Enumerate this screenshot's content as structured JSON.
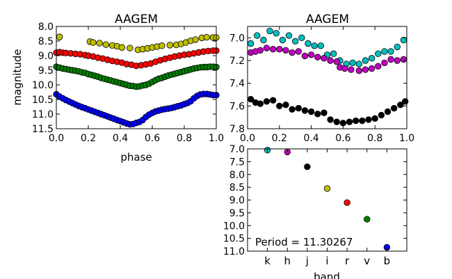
{
  "chart_data": [
    {
      "id": "panel-phase-all",
      "type": "scatter",
      "title": "AAGEM",
      "xlabel": "phase",
      "ylabel": "magnitude",
      "xlim": [
        0.0,
        1.0
      ],
      "ylim": [
        11.5,
        8.0
      ],
      "y_inverted": true,
      "xticks": [
        0.0,
        0.2,
        0.4,
        0.6,
        0.8,
        1.0
      ],
      "xtick_labels": [
        "0.0",
        "0.2",
        "0.4",
        "0.6",
        "0.8",
        "1.0"
      ],
      "yticks": [
        8.0,
        8.5,
        9.0,
        9.5,
        10.0,
        10.5,
        11.0,
        11.5
      ],
      "ytick_labels": [
        "8.0",
        "8.5",
        "9.0",
        "9.5",
        "10.0",
        "10.5",
        "11.0",
        "11.5"
      ],
      "series": [
        {
          "band": "i",
          "color": "#bfbf00",
          "points": [
            [
              0.02,
              8.36
            ],
            [
              0.21,
              8.52
            ],
            [
              0.23,
              8.55
            ],
            [
              0.27,
              8.57
            ],
            [
              0.31,
              8.62
            ],
            [
              0.35,
              8.65
            ],
            [
              0.38,
              8.68
            ],
            [
              0.41,
              8.72
            ],
            [
              0.46,
              8.74
            ],
            [
              0.51,
              8.8
            ],
            [
              0.54,
              8.78
            ],
            [
              0.57,
              8.75
            ],
            [
              0.6,
              8.72
            ],
            [
              0.63,
              8.69
            ],
            [
              0.66,
              8.66
            ],
            [
              0.71,
              8.64
            ],
            [
              0.75,
              8.63
            ],
            [
              0.78,
              8.6
            ],
            [
              0.81,
              8.55
            ],
            [
              0.84,
              8.49
            ],
            [
              0.87,
              8.45
            ],
            [
              0.91,
              8.39
            ],
            [
              0.94,
              8.37
            ],
            [
              0.98,
              8.38
            ],
            [
              1.0,
              8.38
            ]
          ]
        },
        {
          "band": "r",
          "color": "#ff0000",
          "points": [
            [
              0.0,
              8.9
            ],
            [
              0.02,
              8.88
            ],
            [
              0.04,
              8.9
            ],
            [
              0.06,
              8.91
            ],
            [
              0.09,
              8.92
            ],
            [
              0.12,
              8.94
            ],
            [
              0.15,
              8.95
            ],
            [
              0.18,
              8.98
            ],
            [
              0.2,
              9.0
            ],
            [
              0.23,
              9.03
            ],
            [
              0.26,
              9.07
            ],
            [
              0.29,
              9.1
            ],
            [
              0.32,
              9.14
            ],
            [
              0.35,
              9.18
            ],
            [
              0.38,
              9.21
            ],
            [
              0.41,
              9.24
            ],
            [
              0.44,
              9.29
            ],
            [
              0.47,
              9.31
            ],
            [
              0.5,
              9.35
            ],
            [
              0.53,
              9.33
            ],
            [
              0.56,
              9.3
            ],
            [
              0.59,
              9.27
            ],
            [
              0.62,
              9.21
            ],
            [
              0.65,
              9.16
            ],
            [
              0.68,
              9.11
            ],
            [
              0.71,
              9.07
            ],
            [
              0.74,
              9.03
            ],
            [
              0.77,
              9.0
            ],
            [
              0.8,
              8.97
            ],
            [
              0.83,
              8.95
            ],
            [
              0.86,
              8.92
            ],
            [
              0.89,
              8.89
            ],
            [
              0.92,
              8.86
            ],
            [
              0.95,
              8.84
            ],
            [
              0.98,
              8.83
            ],
            [
              1.0,
              8.83
            ]
          ]
        },
        {
          "band": "v",
          "color": "#008000",
          "points": [
            [
              0.0,
              9.38
            ],
            [
              0.02,
              9.41
            ],
            [
              0.04,
              9.44
            ],
            [
              0.06,
              9.46
            ],
            [
              0.08,
              9.48
            ],
            [
              0.1,
              9.5
            ],
            [
              0.12,
              9.52
            ],
            [
              0.14,
              9.54
            ],
            [
              0.16,
              9.57
            ],
            [
              0.18,
              9.59
            ],
            [
              0.2,
              9.63
            ],
            [
              0.22,
              9.66
            ],
            [
              0.24,
              9.69
            ],
            [
              0.26,
              9.72
            ],
            [
              0.28,
              9.76
            ],
            [
              0.3,
              9.79
            ],
            [
              0.32,
              9.82
            ],
            [
              0.34,
              9.85
            ],
            [
              0.36,
              9.88
            ],
            [
              0.38,
              9.91
            ],
            [
              0.4,
              9.94
            ],
            [
              0.42,
              9.97
            ],
            [
              0.44,
              10.0
            ],
            [
              0.46,
              10.03
            ],
            [
              0.48,
              10.04
            ],
            [
              0.5,
              10.06
            ],
            [
              0.52,
              10.05
            ],
            [
              0.54,
              10.02
            ],
            [
              0.56,
              10.0
            ],
            [
              0.58,
              9.96
            ],
            [
              0.6,
              9.9
            ],
            [
              0.62,
              9.84
            ],
            [
              0.64,
              9.79
            ],
            [
              0.66,
              9.76
            ],
            [
              0.68,
              9.72
            ],
            [
              0.7,
              9.68
            ],
            [
              0.72,
              9.65
            ],
            [
              0.74,
              9.62
            ],
            [
              0.76,
              9.59
            ],
            [
              0.78,
              9.56
            ],
            [
              0.8,
              9.53
            ],
            [
              0.82,
              9.5
            ],
            [
              0.84,
              9.47
            ],
            [
              0.86,
              9.44
            ],
            [
              0.88,
              9.42
            ],
            [
              0.9,
              9.4
            ],
            [
              0.92,
              9.39
            ],
            [
              0.94,
              9.39
            ],
            [
              0.96,
              9.38
            ],
            [
              0.98,
              9.38
            ],
            [
              1.0,
              9.39
            ]
          ]
        },
        {
          "band": "b",
          "color": "#0000ff",
          "points": [
            [
              0.0,
              10.32
            ],
            [
              0.02,
              10.4
            ],
            [
              0.04,
              10.46
            ],
            [
              0.06,
              10.52
            ],
            [
              0.08,
              10.57
            ],
            [
              0.1,
              10.62
            ],
            [
              0.12,
              10.67
            ],
            [
              0.14,
              10.72
            ],
            [
              0.16,
              10.76
            ],
            [
              0.18,
              10.8
            ],
            [
              0.2,
              10.84
            ],
            [
              0.22,
              10.88
            ],
            [
              0.24,
              10.92
            ],
            [
              0.26,
              10.96
            ],
            [
              0.28,
              11.0
            ],
            [
              0.3,
              11.04
            ],
            [
              0.32,
              11.08
            ],
            [
              0.34,
              11.12
            ],
            [
              0.36,
              11.16
            ],
            [
              0.38,
              11.2
            ],
            [
              0.4,
              11.24
            ],
            [
              0.42,
              11.28
            ],
            [
              0.44,
              11.32
            ],
            [
              0.46,
              11.35
            ],
            [
              0.48,
              11.34
            ],
            [
              0.5,
              11.3
            ],
            [
              0.52,
              11.27
            ],
            [
              0.54,
              11.2
            ],
            [
              0.56,
              11.1
            ],
            [
              0.58,
              11.02
            ],
            [
              0.6,
              10.96
            ],
            [
              0.62,
              10.91
            ],
            [
              0.64,
              10.88
            ],
            [
              0.66,
              10.85
            ],
            [
              0.68,
              10.83
            ],
            [
              0.7,
              10.81
            ],
            [
              0.72,
              10.79
            ],
            [
              0.74,
              10.76
            ],
            [
              0.76,
              10.73
            ],
            [
              0.78,
              10.7
            ],
            [
              0.8,
              10.66
            ],
            [
              0.82,
              10.62
            ],
            [
              0.84,
              10.56
            ],
            [
              0.86,
              10.46
            ],
            [
              0.88,
              10.38
            ],
            [
              0.9,
              10.33
            ],
            [
              0.92,
              10.31
            ],
            [
              0.94,
              10.31
            ],
            [
              0.96,
              10.33
            ],
            [
              0.98,
              10.35
            ],
            [
              1.0,
              10.35
            ]
          ]
        }
      ]
    },
    {
      "id": "panel-phase-jhk",
      "type": "scatter",
      "title": "AAGEM",
      "xlim": [
        0.0,
        1.0
      ],
      "ylim": [
        7.8,
        6.9
      ],
      "y_inverted": true,
      "xticks": [
        0.0,
        0.2,
        0.4,
        0.6,
        0.8,
        1.0
      ],
      "xtick_labels": [
        "0.0",
        "0.2",
        "0.4",
        "0.6",
        "0.8",
        "1.0"
      ],
      "yticks": [
        7.0,
        7.2,
        7.4,
        7.6,
        7.8
      ],
      "ytick_labels": [
        "7.0",
        "7.2",
        "7.4",
        "7.6",
        "7.8"
      ],
      "series": [
        {
          "band": "k",
          "color": "#00bfbf",
          "points": [
            [
              0.02,
              7.05
            ],
            [
              0.06,
              6.98
            ],
            [
              0.1,
              7.02
            ],
            [
              0.14,
              6.94
            ],
            [
              0.18,
              6.96
            ],
            [
              0.22,
              7.02
            ],
            [
              0.26,
              6.98
            ],
            [
              0.3,
              7.03
            ],
            [
              0.34,
              7.0
            ],
            [
              0.38,
              7.05
            ],
            [
              0.42,
              7.07
            ],
            [
              0.46,
              7.07
            ],
            [
              0.5,
              7.15
            ],
            [
              0.54,
              7.14
            ],
            [
              0.58,
              7.2
            ],
            [
              0.62,
              7.23
            ],
            [
              0.66,
              7.22
            ],
            [
              0.7,
              7.23
            ],
            [
              0.74,
              7.2
            ],
            [
              0.78,
              7.18
            ],
            [
              0.82,
              7.14
            ],
            [
              0.86,
              7.12
            ],
            [
              0.9,
              7.12
            ],
            [
              0.94,
              7.08
            ],
            [
              0.98,
              7.02
            ]
          ]
        },
        {
          "band": "h",
          "color": "#bf00bf",
          "points": [
            [
              0.02,
              7.13
            ],
            [
              0.05,
              7.12
            ],
            [
              0.08,
              7.11
            ],
            [
              0.12,
              7.09
            ],
            [
              0.16,
              7.1
            ],
            [
              0.2,
              7.1
            ],
            [
              0.24,
              7.11
            ],
            [
              0.28,
              7.13
            ],
            [
              0.32,
              7.12
            ],
            [
              0.36,
              7.16
            ],
            [
              0.4,
              7.15
            ],
            [
              0.44,
              7.17
            ],
            [
              0.48,
              7.18
            ],
            [
              0.52,
              7.2
            ],
            [
              0.56,
              7.21
            ],
            [
              0.58,
              7.26
            ],
            [
              0.61,
              7.27
            ],
            [
              0.65,
              7.28
            ],
            [
              0.7,
              7.29
            ],
            [
              0.74,
              7.28
            ],
            [
              0.78,
              7.27
            ],
            [
              0.82,
              7.25
            ],
            [
              0.86,
              7.22
            ],
            [
              0.9,
              7.19
            ],
            [
              0.94,
              7.2
            ],
            [
              0.98,
              7.19
            ]
          ]
        },
        {
          "band": "j",
          "color": "#000000",
          "points": [
            [
              0.02,
              7.54
            ],
            [
              0.05,
              7.57
            ],
            [
              0.08,
              7.58
            ],
            [
              0.12,
              7.56
            ],
            [
              0.16,
              7.55
            ],
            [
              0.2,
              7.6
            ],
            [
              0.24,
              7.59
            ],
            [
              0.28,
              7.63
            ],
            [
              0.32,
              7.62
            ],
            [
              0.36,
              7.64
            ],
            [
              0.4,
              7.65
            ],
            [
              0.44,
              7.67
            ],
            [
              0.48,
              7.66
            ],
            [
              0.52,
              7.72
            ],
            [
              0.56,
              7.74
            ],
            [
              0.6,
              7.75
            ],
            [
              0.64,
              7.74
            ],
            [
              0.68,
              7.73
            ],
            [
              0.72,
              7.73
            ],
            [
              0.76,
              7.72
            ],
            [
              0.8,
              7.71
            ],
            [
              0.84,
              7.68
            ],
            [
              0.88,
              7.65
            ],
            [
              0.92,
              7.62
            ],
            [
              0.96,
              7.59
            ],
            [
              0.99,
              7.56
            ]
          ]
        }
      ]
    },
    {
      "id": "panel-band",
      "type": "scatter",
      "xlabel": "band",
      "annotation": "Period = 11.30267",
      "ylim": [
        11.0,
        7.0
      ],
      "y_inverted": true,
      "categories": [
        "k",
        "h",
        "j",
        "i",
        "r",
        "v",
        "b"
      ],
      "yticks": [
        7.0,
        7.5,
        8.0,
        8.5,
        9.0,
        9.5,
        10.0,
        10.5,
        11.0
      ],
      "ytick_labels": [
        "7.0",
        "7.5",
        "8.0",
        "8.5",
        "9.0",
        "9.5",
        "10.0",
        "10.5",
        "11.0"
      ],
      "values": [
        7.05,
        7.12,
        7.7,
        8.55,
        9.1,
        9.75,
        10.85
      ],
      "colors": [
        "#00bfbf",
        "#bf00bf",
        "#000000",
        "#bfbf00",
        "#ff0000",
        "#008000",
        "#0000ff"
      ]
    }
  ]
}
